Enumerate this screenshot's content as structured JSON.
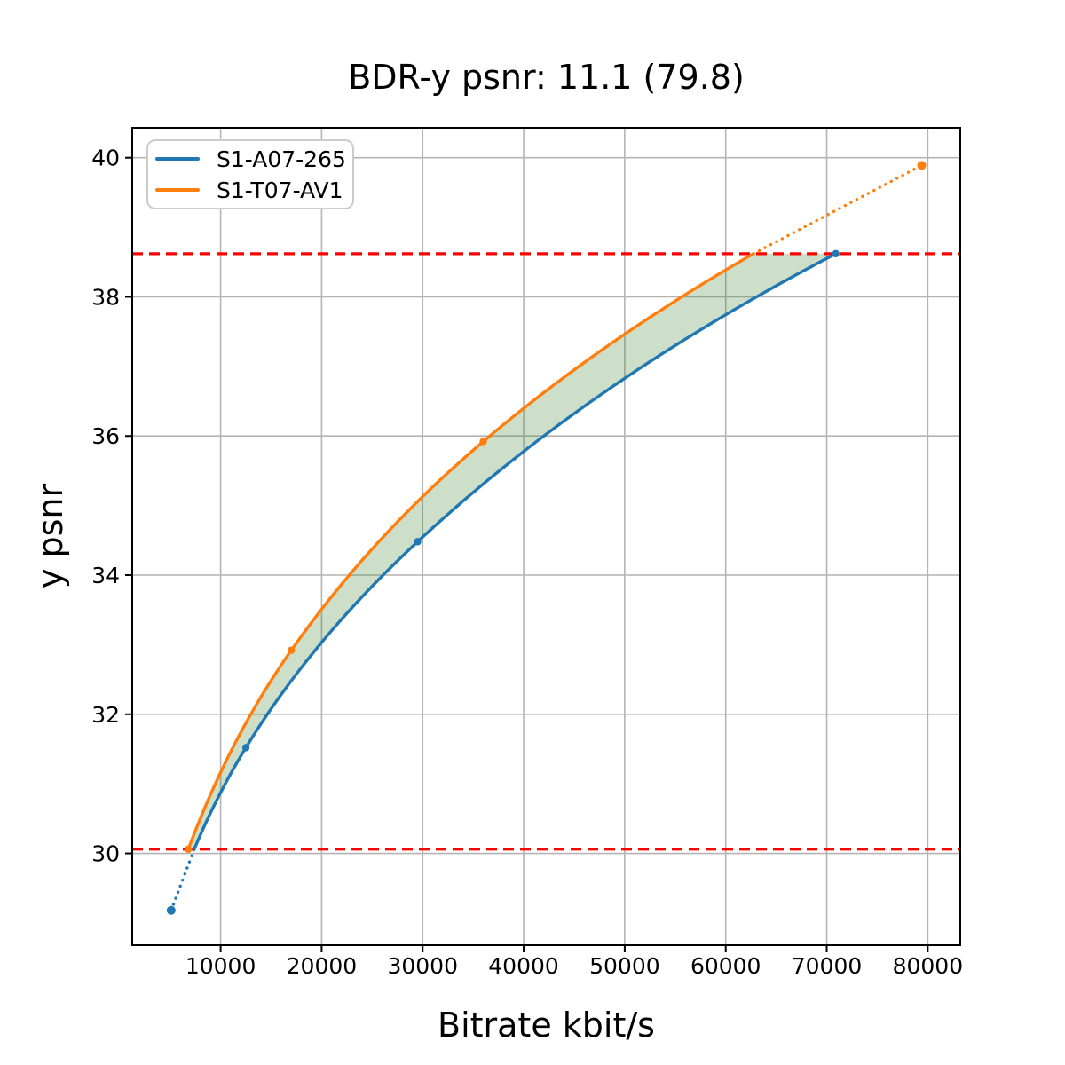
{
  "chart_data": {
    "type": "line",
    "title": "BDR-y psnr: 11.1 (79.8)",
    "xlabel": "Bitrate kbit/s",
    "ylabel": "y psnr",
    "xlim": [
      1250,
      83220
    ],
    "ylim": [
      28.68,
      40.43
    ],
    "xticks": [
      10000,
      20000,
      30000,
      40000,
      50000,
      60000,
      70000,
      80000
    ],
    "yticks": [
      30,
      32,
      34,
      36,
      38,
      40
    ],
    "grid": true,
    "legend_position": "upper left",
    "series": [
      {
        "name": "S1-A07-265",
        "color": "#1f77b4",
        "bitrate_kbits": [
          5100,
          12500,
          29500,
          70900
        ],
        "psnr": [
          29.18,
          31.52,
          34.48,
          38.62
        ]
      },
      {
        "name": "S1-T07-AV1",
        "color": "#ff7f0e",
        "bitrate_kbits": [
          6800,
          17000,
          36000,
          79400
        ],
        "psnr": [
          30.06,
          32.92,
          35.92,
          39.89
        ]
      }
    ],
    "overlap_region": {
      "psnr_low": 30.06,
      "psnr_high": 38.62,
      "line_color": "#ff0000",
      "line_style": "dashed",
      "fill_color": "#3c822d",
      "fill_opacity": 0.26
    }
  }
}
